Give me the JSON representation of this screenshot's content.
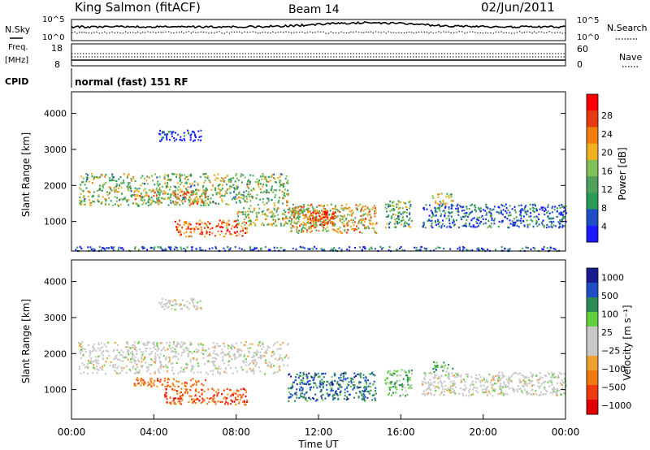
{
  "header": {
    "title": "King Salmon (fitACF)",
    "beam": "Beam 14",
    "date": "02/Jun/2011"
  },
  "top_panel": {
    "nsky_label": "N.Sky",
    "nsearch_label": "N.Search",
    "freq_label_1": "Freq.",
    "freq_label_2": "[MHz]",
    "nave_label": "Nave",
    "cpid_label": "CPID",
    "cpid_value": "normal (fast) 151 RF",
    "noise_ticks_left": [
      "10^5",
      "10^0"
    ],
    "noise_ticks_right": [
      "10^5",
      "10^0"
    ],
    "freq_ticks": [
      "18",
      "8"
    ],
    "nave_ticks": [
      "60",
      "0"
    ]
  },
  "colors": {
    "power_scale": [
      "#1a1aff",
      "#1f4fc4",
      "#2a9c55",
      "#4fa15b",
      "#7fc05a",
      "#f0b020",
      "#f07f10",
      "#e63a10",
      "#ff0000"
    ],
    "velocity_scale": [
      "#e00000",
      "#f03a10",
      "#f07a10",
      "#f0a030",
      "#c8c8c8",
      "#c8c8c8",
      "#60d040",
      "#2e8b57",
      "#1f4fc4",
      "#1a1a90"
    ]
  },
  "chart_data": [
    {
      "type": "heatmap",
      "name": "power",
      "xlabel": "",
      "ylabel": "Slant Range [km]",
      "ylim": [
        180,
        4600
      ],
      "xlim_hours": [
        0,
        24
      ],
      "yticks": [
        "1000",
        "2000",
        "3000",
        "4000"
      ],
      "colorbar_label": "Power [dB]",
      "colorbar_ticks": [
        "4",
        "8",
        "12",
        "16",
        "20",
        "24",
        "28"
      ],
      "regions": [
        {
          "t0": 4.2,
          "t1": 6.3,
          "r0": 3250,
          "r1": 3550,
          "level": 0.05
        },
        {
          "t0": 0.0,
          "t1": 24.0,
          "r0": 200,
          "r1": 320,
          "level": 0.15
        },
        {
          "t0": 0.3,
          "t1": 10.5,
          "r0": 1450,
          "r1": 2350,
          "level": 0.45
        },
        {
          "t0": 3.0,
          "t1": 6.5,
          "r0": 1500,
          "r1": 1900,
          "level": 0.65
        },
        {
          "t0": 5.0,
          "t1": 8.5,
          "r0": 600,
          "r1": 1050,
          "level": 0.8
        },
        {
          "t0": 8.0,
          "t1": 12.8,
          "r0": 900,
          "r1": 1400,
          "level": 0.5
        },
        {
          "t0": 10.5,
          "t1": 14.8,
          "r0": 700,
          "r1": 1500,
          "level": 0.6
        },
        {
          "t0": 11.5,
          "t1": 12.8,
          "r0": 900,
          "r1": 1300,
          "level": 0.9
        },
        {
          "t0": 15.2,
          "t1": 16.5,
          "r0": 850,
          "r1": 1600,
          "level": 0.4
        },
        {
          "t0": 17.0,
          "t1": 24.0,
          "r0": 850,
          "r1": 1500,
          "level": 0.2
        },
        {
          "t0": 17.5,
          "t1": 18.5,
          "r0": 1500,
          "r1": 1800,
          "level": 0.55
        }
      ]
    },
    {
      "type": "heatmap",
      "name": "velocity",
      "xlabel": "Time UT",
      "ylabel": "Slant Range [km]",
      "ylim": [
        180,
        4600
      ],
      "xlim_hours": [
        0,
        24
      ],
      "xticks": [
        "00:00",
        "04:00",
        "08:00",
        "12:00",
        "16:00",
        "20:00",
        "00:00"
      ],
      "yticks": [
        "1000",
        "2000",
        "3000",
        "4000"
      ],
      "colorbar_label": "Velocity [m s⁻¹]",
      "colorbar_ticks": [
        "1000",
        "500",
        "100",
        "25",
        "−25",
        "−100",
        "−500",
        "−1000"
      ],
      "regions": [
        {
          "t0": 4.2,
          "t1": 6.3,
          "r0": 3250,
          "r1": 3550,
          "v": 0.0
        },
        {
          "t0": 0.3,
          "t1": 10.5,
          "r0": 1450,
          "r1": 2350,
          "v": 0.0
        },
        {
          "t0": 4.5,
          "t1": 8.5,
          "r0": 600,
          "r1": 1050,
          "v": -0.6
        },
        {
          "t0": 3.0,
          "t1": 6.5,
          "r0": 1100,
          "r1": 1350,
          "v": -0.5
        },
        {
          "t0": 10.5,
          "t1": 14.8,
          "r0": 700,
          "r1": 1500,
          "v": 0.6
        },
        {
          "t0": 15.2,
          "t1": 16.5,
          "r0": 850,
          "r1": 1600,
          "v": 0.3
        },
        {
          "t0": 17.0,
          "t1": 24.0,
          "r0": 850,
          "r1": 1500,
          "v": 0.0
        },
        {
          "t0": 17.5,
          "t1": 18.5,
          "r0": 1500,
          "r1": 1800,
          "v": 0.4
        }
      ]
    }
  ]
}
